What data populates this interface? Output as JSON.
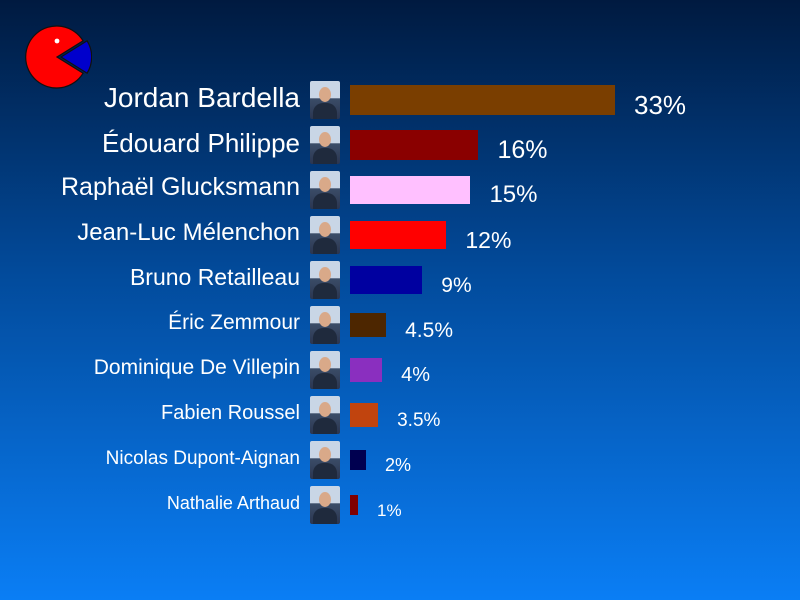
{
  "logo": {
    "name": "pie-logo-icon",
    "color_main": "#ff0000",
    "color_slice": "#0000cc"
  },
  "chart_data": {
    "type": "bar",
    "orientation": "horizontal",
    "title": "",
    "xlabel": "",
    "ylabel": "",
    "xlim": [
      0,
      33
    ],
    "grid": false,
    "legend": "none",
    "categories": [
      "Jordan Bardella",
      "Édouard Philippe",
      "Raphaël Glucksmann",
      "Jean-Luc Mélenchon",
      "Bruno Retailleau",
      "Éric Zemmour",
      "Dominique De Villepin",
      "Fabien Roussel",
      "Nicolas Dupont-Aignan",
      "Nathalie Arthaud"
    ],
    "values": [
      33,
      16,
      15,
      12,
      9,
      4.5,
      4,
      3.5,
      2,
      1
    ],
    "value_labels": [
      "33%",
      "16%",
      "15%",
      "12%",
      "9%",
      "4.5%",
      "4%",
      "3.5%",
      "2%",
      "1%"
    ],
    "colors": [
      "#7a3e00",
      "#8a0000",
      "#ffc0ff",
      "#ff0000",
      "#0000a0",
      "#4d2600",
      "#8a2fbf",
      "#c1440e",
      "#000050",
      "#800000"
    ],
    "photo_icons": [
      "candidate-photo",
      "candidate-photo",
      "candidate-photo",
      "candidate-photo",
      "candidate-photo",
      "candidate-photo",
      "candidate-photo",
      "candidate-photo",
      "candidate-photo",
      "candidate-photo"
    ]
  }
}
